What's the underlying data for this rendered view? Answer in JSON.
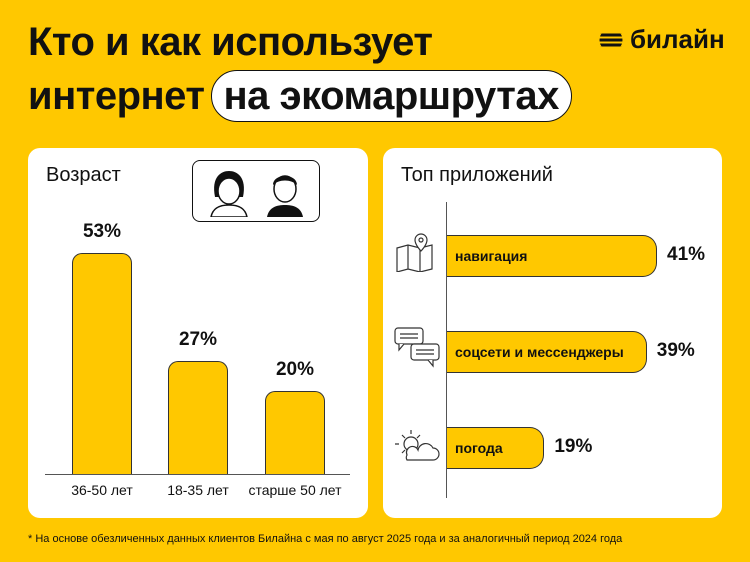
{
  "header": {
    "title_line1": "Кто и как использует",
    "title_line2": "интернет",
    "title_highlight": "на экомаршрутах",
    "brand": "билайн"
  },
  "colors": {
    "accent": "#FFC800",
    "bar_border": "#333333",
    "panel": "#FFFFFF"
  },
  "chart_data": [
    {
      "type": "bar",
      "title": "Возраст",
      "categories": [
        "36-50 лет",
        "18-35 лет",
        "старше 50 лет"
      ],
      "values": [
        53,
        27,
        20
      ],
      "labels": [
        "53%",
        "27%",
        "20%"
      ],
      "icons": [
        "woman-icon",
        "man-icon"
      ]
    },
    {
      "type": "bar",
      "orientation": "horizontal",
      "title": "Топ приложений",
      "categories": [
        "навигация",
        "соцсети и мессенджеры",
        "погода"
      ],
      "values": [
        41,
        39,
        19
      ],
      "labels": [
        "41%",
        "39%",
        "19%"
      ],
      "icons": [
        "map-pin-icon",
        "chat-bubbles-icon",
        "sun-cloud-icon"
      ]
    }
  ],
  "footnote": "* На основе обезличенных данных клиентов Билайна с мая по август 2025 года и за аналогичный период 2024 года"
}
